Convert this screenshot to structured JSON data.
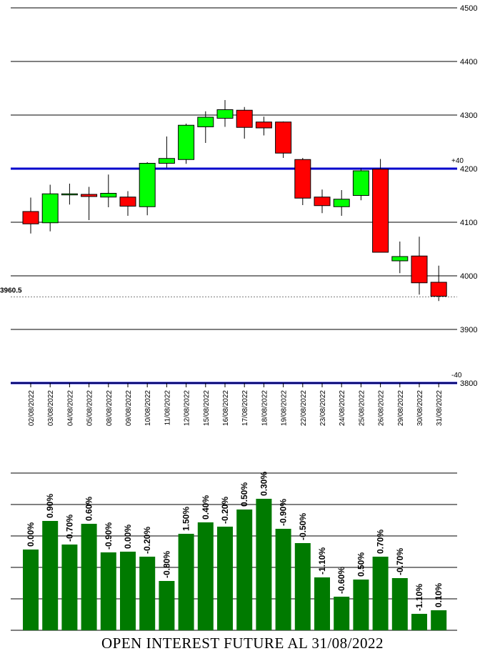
{
  "chart_data": [
    {
      "type": "candlestick",
      "dates": [
        "02/08/2022",
        "03/08/2022",
        "04/08/2022",
        "05/08/2022",
        "08/08/2022",
        "09/08/2022",
        "10/08/2022",
        "11/08/2022",
        "12/08/2022",
        "15/08/2022",
        "16/08/2022",
        "17/08/2022",
        "18/08/2022",
        "19/08/2022",
        "22/08/2022",
        "23/08/2022",
        "24/08/2022",
        "25/08/2022",
        "26/08/2022",
        "29/08/2022",
        "30/08/2022",
        "31/08/2022"
      ],
      "open": [
        4120,
        4099,
        4153,
        4152,
        4147,
        4147,
        4129,
        4210,
        4217,
        4278,
        4294,
        4309,
        4287,
        4287,
        4217,
        4147,
        4129,
        4150,
        4199,
        4028,
        4037,
        3988
      ],
      "close": [
        4097,
        4153,
        4153,
        4148,
        4154,
        4130,
        4210,
        4219,
        4281,
        4296,
        4310,
        4277,
        4276,
        4229,
        4145,
        4131,
        4143,
        4196,
        4044,
        4036,
        3987,
        3962
      ],
      "high": [
        4146,
        4170,
        4172,
        4166,
        4189,
        4158,
        4212,
        4260,
        4284,
        4307,
        4328,
        4315,
        4297,
        4288,
        4220,
        4161,
        4160,
        4201,
        4218,
        4064,
        4073,
        4019
      ],
      "low": [
        4079,
        4083,
        4133,
        4104,
        4128,
        4112,
        4113,
        4202,
        4209,
        4248,
        4278,
        4256,
        4262,
        4220,
        4132,
        4117,
        4112,
        4141,
        4044,
        4005,
        3965,
        3953
      ],
      "y_ticks": [
        "4500",
        "4400",
        "4300",
        "4200",
        "4100",
        "4000",
        "3900",
        "3800"
      ],
      "ylim": [
        3800,
        4500
      ],
      "last_price_label": "3960.5",
      "last_price": 3960.5,
      "reference_lines": [
        {
          "value": 4200,
          "label": "+40",
          "color": "#0000cc"
        },
        {
          "value": 3800,
          "label": "-40",
          "color": "#0000cc"
        }
      ],
      "up_color": "#00ff00",
      "down_color": "#ff0000"
    },
    {
      "type": "bar",
      "categories": [
        "02/08/2022",
        "03/08/2022",
        "04/08/2022",
        "05/08/2022",
        "08/08/2022",
        "09/08/2022",
        "10/08/2022",
        "11/08/2022",
        "12/08/2022",
        "15/08/2022",
        "16/08/2022",
        "17/08/2022",
        "18/08/2022",
        "19/08/2022",
        "22/08/2022",
        "23/08/2022",
        "24/08/2022",
        "25/08/2022",
        "26/08/2022",
        "29/08/2022",
        "30/08/2022",
        "31/08/2022"
      ],
      "values": [
        113,
        153,
        120,
        149,
        109,
        110,
        103,
        69,
        135,
        151,
        145,
        169,
        184,
        142,
        122,
        74,
        47,
        71,
        103,
        73,
        23,
        28
      ],
      "data_labels": [
        "0.00%",
        "0.90%",
        "-0.70%",
        "0.60%",
        "-0.90%",
        "0.00%",
        "-0.20%",
        "-0.80%",
        "1.50%",
        "0.40%",
        "-0.20%",
        "0.50%",
        "0.30%",
        "-0.90%",
        "-0.50%",
        "-1.10%",
        "-0.60%",
        "0.50%",
        "0.70%",
        "-0.70%",
        "-1.10%",
        "0.10%"
      ],
      "ylim": [
        0,
        220
      ],
      "grid": true,
      "bar_color": "#007a00",
      "title": "OPEN INTEREST FUTURE AL 31/08/2022"
    }
  ]
}
